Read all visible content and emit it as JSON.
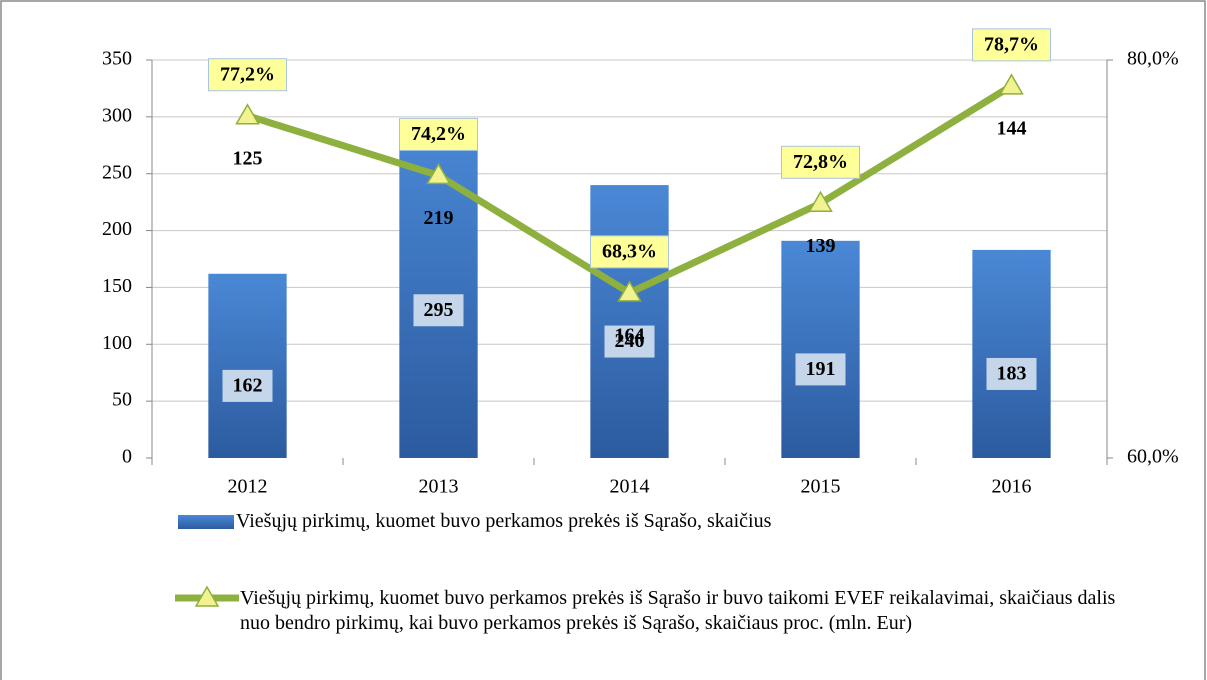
{
  "chart_data": {
    "type": "bar-line",
    "categories": [
      "2012",
      "2013",
      "2014",
      "2015",
      "2016"
    ],
    "series": [
      {
        "name": "Viešųjų pirkimų, kuomet buvo perkamos prekės iš Sąrašo, skaičius",
        "type": "bar",
        "color": "#3a75c4",
        "values": [
          162,
          295,
          240,
          191,
          183
        ]
      },
      {
        "name": "Viešųjų pirkimų, kuomet buvo perkamos prekės iš Sąrašo ir buvo taikomi EVEF reikalavimai, skaičiaus dalis nuo bendro pirkimų, kai buvo perkamos prekės iš Sąrašo, skaičiaus proc. (mln. Eur)",
        "type": "line",
        "axis": "y2",
        "color": "#8db03e",
        "values": [
          77.2,
          74.2,
          68.3,
          72.8,
          78.7
        ],
        "value_labels": [
          "77,2%",
          "74,2%",
          "68,3%",
          "72,8%",
          "78,7%"
        ],
        "counts": [
          125,
          219,
          164,
          139,
          144
        ]
      }
    ],
    "ylim": [
      0,
      350
    ],
    "yticks": [
      0,
      50,
      100,
      150,
      200,
      250,
      300,
      350
    ],
    "y2lim": [
      60,
      80
    ],
    "y2ticks": [
      {
        "value": 60,
        "label": "60,0%"
      },
      {
        "value": 80,
        "label": "80,0%"
      }
    ],
    "grid": true,
    "legend": "bottom"
  }
}
